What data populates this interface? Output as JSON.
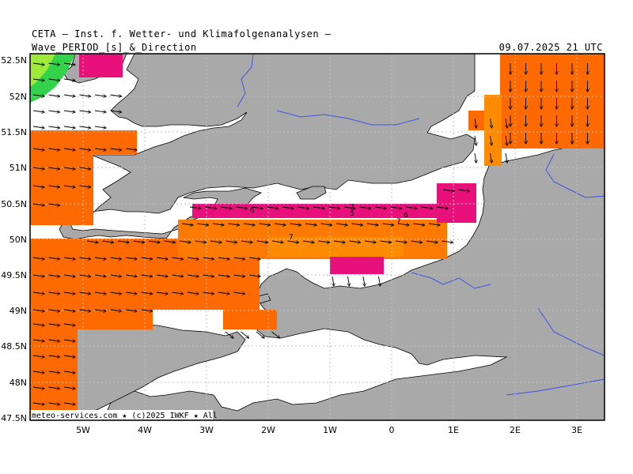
{
  "header": {
    "institute": "CETA – Inst. f. Wetter- und Klimafolgenanalysen –",
    "subtitle": "Wave_PERIOD_[s]_&_Direction",
    "datetime": "09.07.2025  21 UTC"
  },
  "map": {
    "lat_labels": [
      "52.5N",
      "52N",
      "51.5N",
      "51N",
      "50.5N",
      "50N",
      "49.5N",
      "49N",
      "48.5N",
      "48N",
      "47.5N"
    ],
    "lon_labels": [
      "5W",
      "4W",
      "3W",
      "2W",
      "1W",
      "0",
      "1E",
      "2E",
      "3E"
    ],
    "credit": "meteo-services.com ★ (c)2025  IWKF ★ All",
    "period_labels": [
      "6",
      "7",
      "5",
      "7",
      "6",
      "7"
    ],
    "colors": {
      "land": "#a9a9a9",
      "sea_low": "#ff6a00",
      "sea_mid": "#ff8c00",
      "sea_high": "#ff4040",
      "sea_peak": "#e8107a",
      "sea_green": "#32d24a",
      "border": "#3d55e8"
    }
  }
}
